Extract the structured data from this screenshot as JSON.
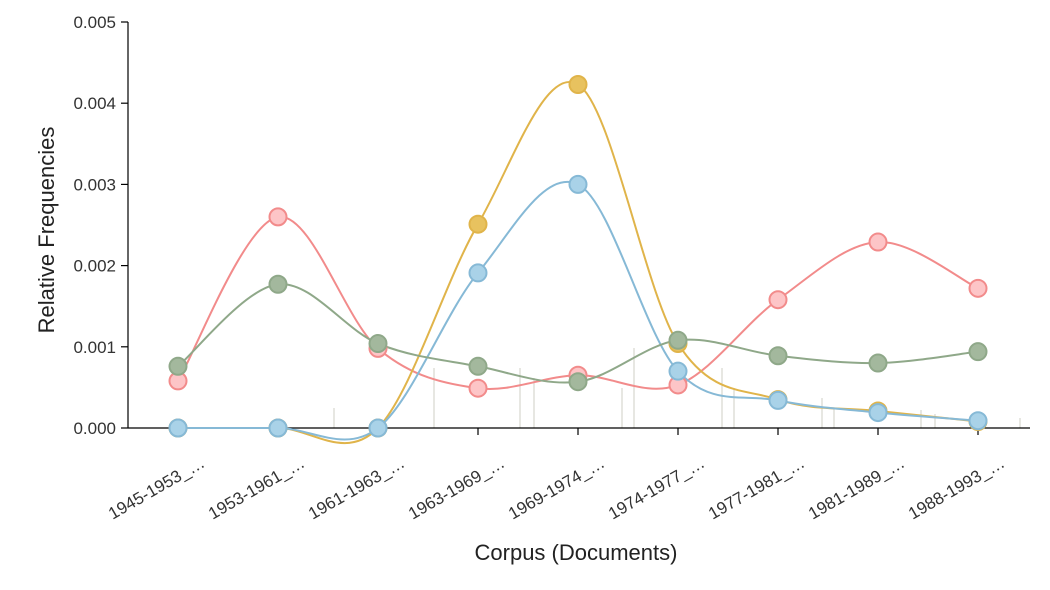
{
  "chart_data": {
    "type": "line",
    "xlabel": "Corpus (Documents)",
    "ylabel": "Relative Frequencies",
    "categories": [
      "1945-1953_…",
      "1953-1961_…",
      "1961-1963_…",
      "1963-1969_…",
      "1969-1974_…",
      "1974-1977_…",
      "1977-1981_…",
      "1981-1989_…",
      "1988-1993_…"
    ],
    "ylim": [
      0,
      0.005
    ],
    "yticks": [
      "0.000",
      "0.001",
      "0.002",
      "0.003",
      "0.004",
      "0.005"
    ],
    "grid": false,
    "legend": "none",
    "series": [
      {
        "color": "#f28b8b",
        "fill": "#fdc5c7",
        "values": [
          0.00058,
          0.0026,
          0.00098,
          0.00049,
          0.00065,
          0.00053,
          0.00158,
          0.00229,
          0.00172
        ]
      },
      {
        "color": "#e0b44a",
        "fill": "#e8c25f",
        "values": [
          0.0,
          0.0,
          0.0,
          0.00251,
          0.00423,
          0.00104,
          0.00035,
          0.00021,
          8e-05
        ]
      },
      {
        "color": "#86b9d6",
        "fill": "#a9d2e8",
        "values": [
          0.0,
          0.0,
          0.0,
          0.00191,
          0.003,
          0.0007,
          0.00034,
          0.00019,
          9e-05
        ]
      },
      {
        "color": "#8fa889",
        "fill": "#a3b89d",
        "values": [
          0.00076,
          0.00177,
          0.00104,
          0.00076,
          0.00057,
          0.00108,
          0.00089,
          0.0008,
          0.00094
        ]
      }
    ]
  }
}
